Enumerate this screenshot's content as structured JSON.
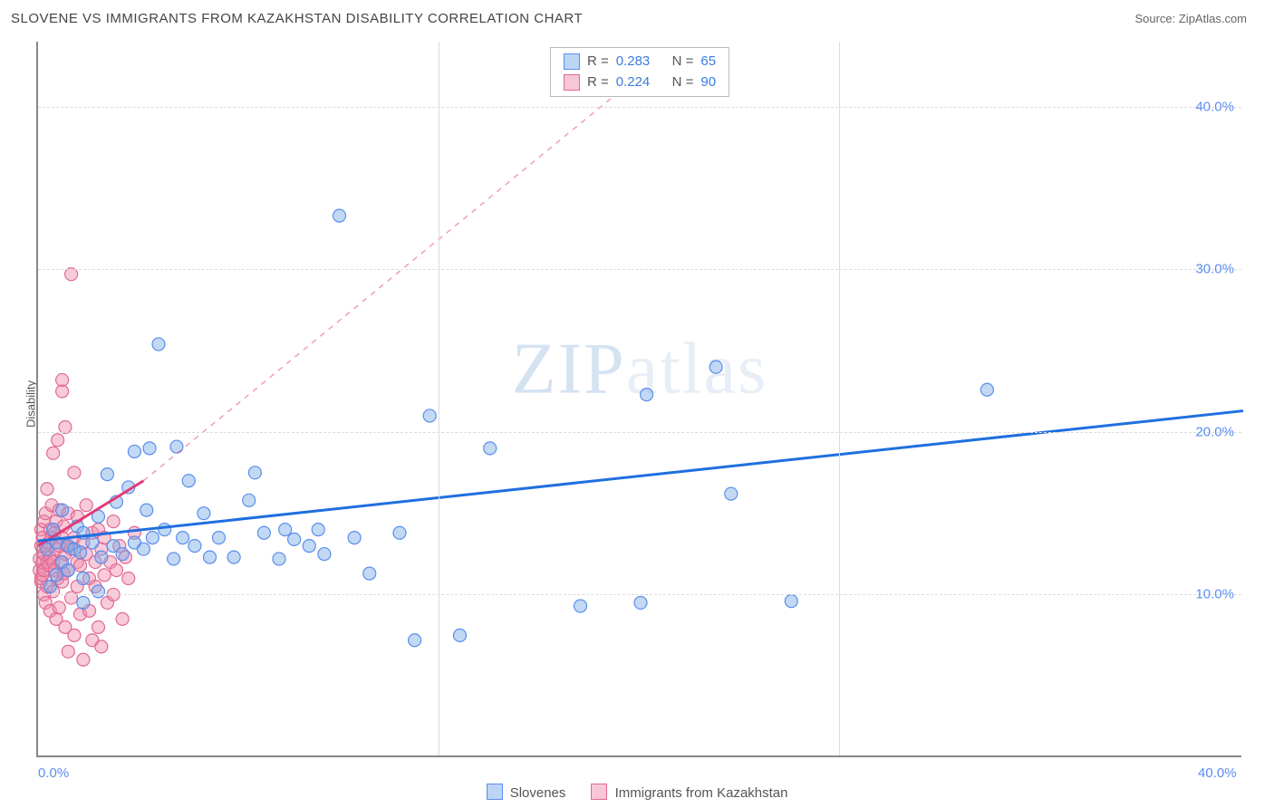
{
  "title": "SLOVENE VS IMMIGRANTS FROM KAZAKHSTAN DISABILITY CORRELATION CHART",
  "source_label": "Source: ZipAtlas.com",
  "ylabel": "Disability",
  "watermark": {
    "part1": "ZIP",
    "part2": "atlas"
  },
  "chart": {
    "type": "scatter",
    "background_color": "#ffffff",
    "grid_color": "#dddddd",
    "axis_color": "#888888",
    "tick_label_color": "#5b8def",
    "tick_fontsize": 15,
    "xlim": [
      0,
      40
    ],
    "ylim": [
      0,
      44
    ],
    "x_ticks": [
      0,
      40
    ],
    "x_tick_labels": [
      "0.0%",
      "40.0%"
    ],
    "y_ticks": [
      10,
      20,
      30,
      40
    ],
    "y_tick_labels": [
      "10.0%",
      "20.0%",
      "30.0%",
      "40.0%"
    ],
    "x_minor_gridlines_at": [
      13.3,
      26.6
    ],
    "marker_radius": 7,
    "marker_stroke_width": 1.2,
    "trend_solid_width": 3,
    "trend_dash_pattern": "6,6"
  },
  "series": [
    {
      "key": "slovenes",
      "label": "Slovenes",
      "color_fill": "rgba(120,170,230,0.45)",
      "color_stroke": "#5b8def",
      "swatch_fill": "#bcd5f5",
      "swatch_border": "#5b8def",
      "stats": {
        "R": "0.283",
        "N": "65"
      },
      "trend": {
        "x1": 0,
        "y1": 13.3,
        "x2": 40,
        "y2": 21.3,
        "style": "solid",
        "color": "#1f6fe0"
      },
      "points": [
        [
          0.3,
          12.8
        ],
        [
          0.4,
          10.5
        ],
        [
          0.5,
          14.0
        ],
        [
          0.6,
          11.2
        ],
        [
          0.6,
          13.2
        ],
        [
          0.8,
          12.0
        ],
        [
          0.8,
          15.2
        ],
        [
          1.0,
          13.0
        ],
        [
          1.0,
          11.5
        ],
        [
          1.2,
          12.8
        ],
        [
          1.3,
          14.2
        ],
        [
          1.4,
          12.6
        ],
        [
          1.5,
          13.8
        ],
        [
          1.5,
          11.0
        ],
        [
          1.8,
          13.2
        ],
        [
          2.0,
          14.8
        ],
        [
          2.1,
          12.3
        ],
        [
          2.3,
          17.4
        ],
        [
          2.5,
          13.0
        ],
        [
          2.6,
          15.7
        ],
        [
          2.8,
          12.5
        ],
        [
          3.0,
          16.6
        ],
        [
          3.2,
          13.2
        ],
        [
          3.2,
          18.8
        ],
        [
          3.5,
          12.8
        ],
        [
          3.6,
          15.2
        ],
        [
          3.7,
          19.0
        ],
        [
          3.8,
          13.5
        ],
        [
          4.0,
          25.4
        ],
        [
          4.2,
          14.0
        ],
        [
          4.5,
          12.2
        ],
        [
          4.6,
          19.1
        ],
        [
          4.8,
          13.5
        ],
        [
          5.0,
          17.0
        ],
        [
          5.2,
          13.0
        ],
        [
          5.5,
          15.0
        ],
        [
          5.7,
          12.3
        ],
        [
          6.0,
          13.5
        ],
        [
          6.5,
          12.3
        ],
        [
          7.0,
          15.8
        ],
        [
          7.2,
          17.5
        ],
        [
          7.5,
          13.8
        ],
        [
          8.0,
          12.2
        ],
        [
          8.2,
          14.0
        ],
        [
          8.5,
          13.4
        ],
        [
          9.0,
          13.0
        ],
        [
          9.3,
          14.0
        ],
        [
          9.5,
          12.5
        ],
        [
          10.0,
          33.3
        ],
        [
          10.5,
          13.5
        ],
        [
          11.0,
          11.3
        ],
        [
          12.0,
          13.8
        ],
        [
          12.5,
          7.2
        ],
        [
          13.0,
          21.0
        ],
        [
          14.0,
          7.5
        ],
        [
          15.0,
          19.0
        ],
        [
          18.0,
          9.3
        ],
        [
          20.0,
          9.5
        ],
        [
          20.2,
          22.3
        ],
        [
          22.5,
          24.0
        ],
        [
          23.0,
          16.2
        ],
        [
          25.0,
          9.6
        ],
        [
          31.5,
          22.6
        ],
        [
          1.5,
          9.5
        ],
        [
          2.0,
          10.2
        ]
      ]
    },
    {
      "key": "kazakhstan",
      "label": "Immigrants from Kazakhstan",
      "color_fill": "rgba(240,140,170,0.45)",
      "color_stroke": "#e06a94",
      "swatch_fill": "#f7c6d7",
      "swatch_border": "#e06a94",
      "stats": {
        "R": "0.224",
        "N": "90"
      },
      "trend_solid": {
        "x1": 0,
        "y1": 13.0,
        "x2": 3.5,
        "y2": 17.0,
        "color": "#e23b77"
      },
      "trend_dash": {
        "x1": 3.5,
        "y1": 17.0,
        "x2": 20,
        "y2": 42,
        "color": "rgba(226,59,119,0.5)"
      },
      "points": [
        [
          0.05,
          11.5
        ],
        [
          0.05,
          12.2
        ],
        [
          0.1,
          10.8
        ],
        [
          0.1,
          13.0
        ],
        [
          0.1,
          11.0
        ],
        [
          0.1,
          14.0
        ],
        [
          0.15,
          12.0
        ],
        [
          0.15,
          11.2
        ],
        [
          0.15,
          13.5
        ],
        [
          0.2,
          10.0
        ],
        [
          0.2,
          12.5
        ],
        [
          0.2,
          14.5
        ],
        [
          0.2,
          11.5
        ],
        [
          0.25,
          13.0
        ],
        [
          0.25,
          9.5
        ],
        [
          0.25,
          15.0
        ],
        [
          0.3,
          12.0
        ],
        [
          0.3,
          16.5
        ],
        [
          0.3,
          10.5
        ],
        [
          0.35,
          13.2
        ],
        [
          0.35,
          11.8
        ],
        [
          0.4,
          14.0
        ],
        [
          0.4,
          12.3
        ],
        [
          0.4,
          9.0
        ],
        [
          0.45,
          13.5
        ],
        [
          0.45,
          15.5
        ],
        [
          0.5,
          18.7
        ],
        [
          0.5,
          12.0
        ],
        [
          0.5,
          10.2
        ],
        [
          0.55,
          11.5
        ],
        [
          0.55,
          13.8
        ],
        [
          0.6,
          14.5
        ],
        [
          0.6,
          8.5
        ],
        [
          0.6,
          12.8
        ],
        [
          0.65,
          19.5
        ],
        [
          0.65,
          11.0
        ],
        [
          0.7,
          13.0
        ],
        [
          0.7,
          15.2
        ],
        [
          0.7,
          9.2
        ],
        [
          0.75,
          12.0
        ],
        [
          0.8,
          22.5
        ],
        [
          0.8,
          23.2
        ],
        [
          0.8,
          13.5
        ],
        [
          0.8,
          10.8
        ],
        [
          0.85,
          14.2
        ],
        [
          0.85,
          11.3
        ],
        [
          0.9,
          20.3
        ],
        [
          0.9,
          12.5
        ],
        [
          0.9,
          8.0
        ],
        [
          0.95,
          13.0
        ],
        [
          1.0,
          15.0
        ],
        [
          1.0,
          11.5
        ],
        [
          1.0,
          6.5
        ],
        [
          1.1,
          29.7
        ],
        [
          1.1,
          12.8
        ],
        [
          1.1,
          9.8
        ],
        [
          1.2,
          13.5
        ],
        [
          1.2,
          17.5
        ],
        [
          1.2,
          7.5
        ],
        [
          1.3,
          12.0
        ],
        [
          1.3,
          14.8
        ],
        [
          1.3,
          10.5
        ],
        [
          1.4,
          11.8
        ],
        [
          1.4,
          8.8
        ],
        [
          1.5,
          13.2
        ],
        [
          1.5,
          6.0
        ],
        [
          1.6,
          12.5
        ],
        [
          1.6,
          15.5
        ],
        [
          1.7,
          11.0
        ],
        [
          1.7,
          9.0
        ],
        [
          1.8,
          13.8
        ],
        [
          1.8,
          7.2
        ],
        [
          1.9,
          12.0
        ],
        [
          1.9,
          10.5
        ],
        [
          2.0,
          14.0
        ],
        [
          2.0,
          8.0
        ],
        [
          2.1,
          12.8
        ],
        [
          2.1,
          6.8
        ],
        [
          2.2,
          13.5
        ],
        [
          2.2,
          11.2
        ],
        [
          2.3,
          9.5
        ],
        [
          2.4,
          12.0
        ],
        [
          2.5,
          14.5
        ],
        [
          2.5,
          10.0
        ],
        [
          2.6,
          11.5
        ],
        [
          2.7,
          13.0
        ],
        [
          2.8,
          8.5
        ],
        [
          2.9,
          12.3
        ],
        [
          3.0,
          11.0
        ],
        [
          3.2,
          13.8
        ]
      ]
    }
  ],
  "stats_box": {
    "rows": [
      {
        "series_key": "slovenes",
        "R_label": "R =",
        "N_label": "N ="
      },
      {
        "series_key": "kazakhstan",
        "R_label": "R =",
        "N_label": "N ="
      }
    ]
  }
}
